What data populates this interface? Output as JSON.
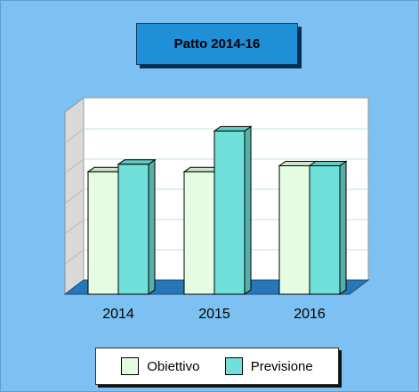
{
  "chart_data": {
    "type": "bar",
    "title": "Patto 2014-16",
    "categories": [
      "2014",
      "2015",
      "2016"
    ],
    "series": [
      {
        "name": "Obiettivo",
        "values": [
          40.5,
          40.5,
          42.5
        ],
        "color": "#e4fde2"
      },
      {
        "name": "Previsione",
        "values": [
          43,
          54,
          42.5
        ],
        "color": "#6fe0da"
      }
    ],
    "ylim": [
      0,
      60
    ],
    "grid": true,
    "legend_position": "bottom"
  }
}
